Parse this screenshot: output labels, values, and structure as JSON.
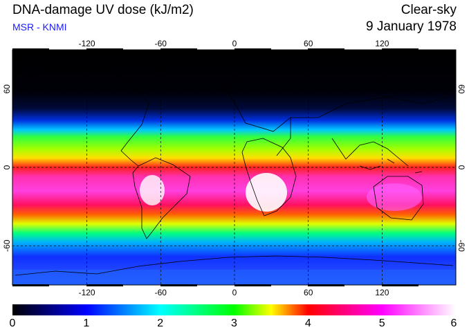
{
  "header": {
    "title": "DNA-damage UV dose (kJ/m2)",
    "subtitle": "MSR - KNMI",
    "condition": "Clear-sky",
    "date": "9 January 1978"
  },
  "map": {
    "projection": "equirectangular",
    "lon_range": [
      -180,
      180
    ],
    "lat_range": [
      -90,
      90
    ],
    "lon_ticks": [
      "-120",
      "-60",
      "0",
      "60",
      "120"
    ],
    "lat_ticks": [
      "60",
      "0",
      "-60"
    ],
    "gridlines": "dashed"
  },
  "colorbar": {
    "min": 0,
    "max": 6,
    "labels": [
      "0",
      "1",
      "2",
      "3",
      "4",
      "5",
      "6"
    ],
    "colors": [
      "#000000",
      "#0000ff",
      "#00ffff",
      "#00ff00",
      "#ffff00",
      "#ff0000",
      "#ff00ff",
      "#ffffff"
    ]
  }
}
